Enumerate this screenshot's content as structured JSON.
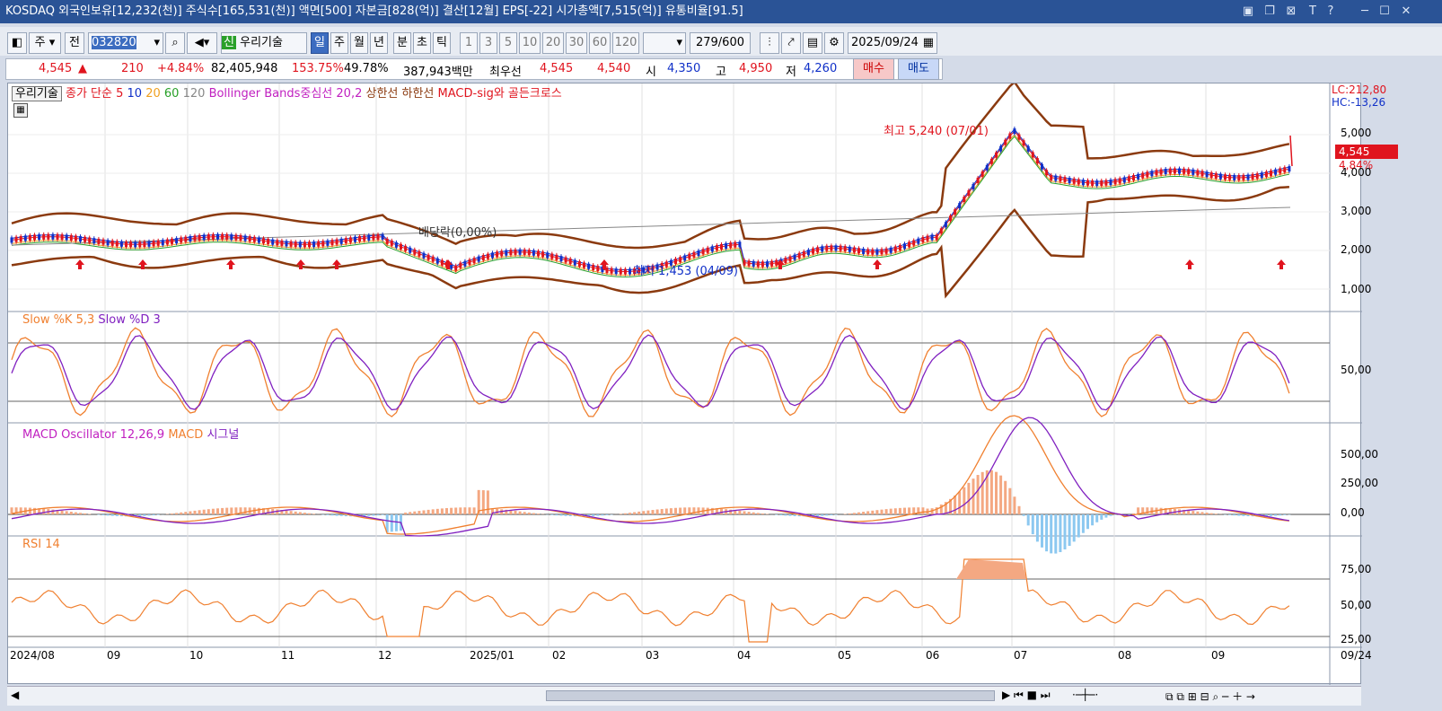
{
  "title_bar": {
    "text": "KOSDAQ 외국인보유[12,232(천)] 주식수[165,531(천)] 액면[500] 자본금[828(억)] 결산[12월] EPS[-22] 시가총액[7,515(억)] 유통비율[91.5]"
  },
  "toolbar": {
    "period_select": "주",
    "prev_label": "전",
    "code": "032820",
    "name": "우리기술",
    "credit_badge": "신",
    "period_buttons": [
      "일",
      "주",
      "월",
      "년",
      "분",
      "초",
      "틱"
    ],
    "count_buttons": [
      "1",
      "3",
      "5",
      "10",
      "20",
      "30",
      "60",
      "120"
    ],
    "count_display": "279/600",
    "date": "2025/09/24"
  },
  "quote": {
    "price": "4,545",
    "arrow": "▲",
    "change": "210",
    "change_pct": "+4.84%",
    "volume": "82,405,948",
    "vol_ratio": "153.75%",
    "turnover": "49.78%",
    "amount": "387,943백만",
    "best_label": "최우선",
    "best_ask": "4,545",
    "best_bid": "4,540",
    "open_label": "시",
    "open": "4,350",
    "high_label": "고",
    "high": "4,950",
    "low_label": "저",
    "low": "4,260",
    "buy_label": "매수",
    "sell_label": "매도"
  },
  "price_panel": {
    "stock_tag": "우리기술",
    "legend": {
      "close": "종가 단순",
      "ma5": "5",
      "ma10": "10",
      "ma20": "20",
      "ma60": "60",
      "ma120": "120",
      "bb": "Bollinger Bands중심선 20,2",
      "bb_upper": "상한선",
      "bb_lower": "하한선",
      "macd_sig": "MACD-sig와 골든크로스"
    },
    "lc": "LC:212,80",
    "hc": "HC:-13,26",
    "last_price": "4,545",
    "last_pct": "4,84%",
    "y_ticks": [
      "5,000",
      "4,000",
      "3,000",
      "2,000",
      "1,000"
    ],
    "high_note": "최고 5,240 (07/01)",
    "low_note": "최저 1,453 (04/09)",
    "div_note": "배당락(0,00%)"
  },
  "stoch_panel": {
    "k_label": "Slow %K 5,3",
    "d_label": "Slow %D 3",
    "y_tick": "50,00"
  },
  "macd_panel": {
    "osc_label": "MACD Oscillator 12,26,9",
    "macd_label": "MACD",
    "signal_label": "시그널",
    "y_ticks": [
      "500,00",
      "250,00",
      "0,00"
    ]
  },
  "rsi_panel": {
    "label": "RSI 14",
    "y_ticks": [
      "75,00",
      "50,00",
      "25,00"
    ]
  },
  "x_axis": {
    "labels": [
      "2024/08",
      "09",
      "10",
      "11",
      "12",
      "2025/01",
      "02",
      "03",
      "04",
      "05",
      "06",
      "07",
      "08",
      "09"
    ],
    "end_label": "09/24"
  },
  "colors": {
    "title_bg": "#2a5396",
    "up": "#e0141e",
    "down": "#1030c8",
    "bb": "#8b3a0f",
    "ma5": "#e0141e",
    "ma20": "#f0a020",
    "ma60": "#28a028",
    "stoch_k": "#f08030",
    "stoch_d": "#8020c0"
  },
  "icons": [
    "layout-icon",
    "search-icon",
    "sound-icon",
    "settings-icon",
    "calendar-icon",
    "lock-icon",
    "save-icon",
    "grid-icon"
  ]
}
